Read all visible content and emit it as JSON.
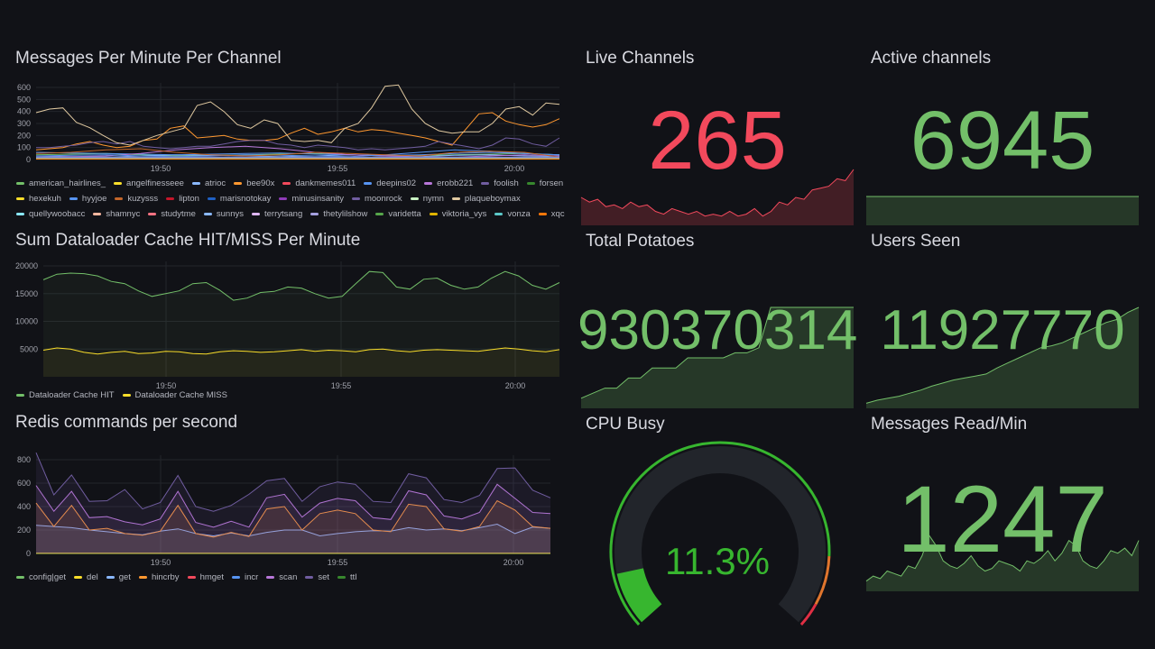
{
  "panels": {
    "messages": {
      "title": "Messages Per Minute Per Channel",
      "yticks": [
        "0",
        "100",
        "200",
        "300",
        "400",
        "500",
        "600"
      ],
      "xticks": [
        "19:50",
        "19:55",
        "20:00"
      ],
      "series": [
        {
          "name": "american_hairlines_",
          "color": "#73bf69",
          "values": [
            40,
            45,
            50,
            40,
            30,
            35,
            40,
            45,
            50,
            40,
            30,
            35,
            40,
            45,
            50,
            40
          ]
        },
        {
          "name": "angelfinesseee",
          "color": "#fade2a",
          "values": [
            5,
            5,
            5,
            5,
            5,
            5,
            5,
            5
          ]
        },
        {
          "name": "atrioc",
          "color": "#8ab8ff",
          "values": [
            30,
            25,
            20,
            30,
            40,
            35,
            30,
            25,
            30,
            40,
            30,
            25,
            35,
            40,
            30,
            25
          ]
        },
        {
          "name": "bee90x",
          "color": "#ff9830",
          "values": [
            80,
            90,
            100,
            130,
            150,
            120,
            100,
            110,
            160,
            170,
            260,
            280,
            180,
            190,
            200,
            170,
            160,
            160,
            170,
            220,
            260,
            210,
            230,
            260,
            230,
            250,
            240,
            220,
            200,
            180,
            150,
            120,
            250,
            380,
            390,
            320,
            290,
            270,
            290,
            340
          ]
        },
        {
          "name": "dankmemes011",
          "color": "#f2495c",
          "values": [
            5,
            5,
            5,
            5,
            5,
            5,
            5,
            5
          ]
        },
        {
          "name": "deepins02",
          "color": "#5794f2",
          "values": [
            60,
            55,
            50,
            45,
            40,
            45,
            50,
            55,
            45,
            40,
            35,
            40,
            50,
            60,
            50,
            40
          ]
        },
        {
          "name": "erobb221",
          "color": "#b877d9",
          "values": [
            20,
            25,
            30,
            50,
            80,
            100,
            110,
            90,
            60,
            40,
            30,
            20,
            20,
            30,
            40,
            30
          ]
        },
        {
          "name": "foolish",
          "color": "#705da0",
          "values": [
            100,
            100,
            110,
            120,
            140,
            150,
            130,
            150,
            110,
            100,
            90,
            100,
            110,
            110,
            130,
            150,
            160,
            160,
            130,
            120,
            100,
            120,
            110,
            100,
            80,
            90,
            80,
            90,
            100,
            110,
            150,
            130,
            110,
            90,
            120,
            180,
            170,
            130,
            110,
            180
          ]
        },
        {
          "name": "forsen",
          "color": "#37872d",
          "values": [
            10,
            10,
            10,
            10,
            10,
            10,
            10,
            10
          ]
        },
        {
          "name": "hexekuh",
          "color": "#fade2a",
          "values": [
            5,
            5,
            5,
            5,
            5,
            5,
            5,
            5
          ]
        },
        {
          "name": "hyyjoe",
          "color": "#5794f2",
          "values": [
            30,
            35,
            40,
            30,
            25,
            30,
            40,
            35,
            30,
            25,
            40,
            60,
            80,
            70,
            50,
            40
          ]
        },
        {
          "name": "kuzysss",
          "color": "#c4662a",
          "values": [
            50,
            60,
            80,
            90,
            60,
            40,
            30,
            40,
            60,
            50,
            40,
            30,
            60,
            70,
            60,
            20
          ]
        },
        {
          "name": "lipton",
          "color": "#c4162a",
          "values": [
            5,
            5,
            5,
            5,
            5,
            5,
            5,
            5
          ]
        },
        {
          "name": "marisnotokay",
          "color": "#1f60c4",
          "values": [
            10,
            10,
            10,
            10,
            10,
            10,
            10,
            10
          ]
        },
        {
          "name": "minusinsanity",
          "color": "#8f3bb8",
          "values": [
            15,
            15,
            15,
            15,
            15,
            15,
            15,
            15
          ]
        },
        {
          "name": "moonrock",
          "color": "#705da0",
          "values": [
            20,
            20,
            20,
            20,
            20,
            20,
            20,
            20
          ]
        },
        {
          "name": "nymn",
          "color": "#c8f2c2",
          "values": [
            10,
            10,
            10,
            10,
            10,
            10,
            10,
            10
          ]
        },
        {
          "name": "plaqueboymax",
          "color": "#e0c9a0",
          "values": [
            390,
            420,
            430,
            310,
            265,
            200,
            140,
            120,
            160,
            200,
            230,
            260,
            450,
            480,
            400,
            290,
            260,
            330,
            300,
            160,
            150,
            160,
            140,
            260,
            300,
            430,
            610,
            620,
            420,
            300,
            240,
            220,
            230,
            230,
            300,
            420,
            440,
            370,
            470,
            460
          ]
        },
        {
          "name": "quellywoobacc",
          "color": "#8ae8ff",
          "values": [
            10,
            10,
            10,
            10,
            10,
            10,
            10,
            10
          ]
        },
        {
          "name": "shamnyc",
          "color": "#ffb8a0",
          "values": [
            10,
            10,
            10,
            10,
            10,
            10,
            10,
            10
          ]
        },
        {
          "name": "studytme",
          "color": "#ff7383",
          "values": [
            5,
            5,
            5,
            5,
            5,
            5,
            5,
            5
          ]
        },
        {
          "name": "sunnys",
          "color": "#8ab8ff",
          "values": [
            15,
            15,
            15,
            15,
            15,
            15,
            15,
            15
          ]
        },
        {
          "name": "terrytsang",
          "color": "#deb6f2",
          "values": [
            10,
            10,
            10,
            10,
            10,
            10,
            10,
            10
          ]
        },
        {
          "name": "thetylilshow",
          "color": "#a5a0e0",
          "values": [
            10,
            10,
            10,
            10,
            10,
            10,
            10,
            10
          ]
        },
        {
          "name": "varidetta",
          "color": "#56a64b",
          "values": [
            5,
            5,
            5,
            5,
            5,
            5,
            5,
            5
          ]
        },
        {
          "name": "viktoria_vys",
          "color": "#e0b400",
          "values": [
            5,
            5,
            5,
            5,
            5,
            5,
            5,
            5
          ]
        },
        {
          "name": "vonza",
          "color": "#5cc8c8",
          "values": [
            10,
            10,
            10,
            10,
            10,
            10,
            10,
            10
          ]
        },
        {
          "name": "xqc",
          "color": "#ff780a",
          "values": [
            5,
            5,
            5,
            5,
            5,
            5,
            5,
            5
          ]
        }
      ]
    },
    "cache": {
      "title": "Sum Dataloader Cache HIT/MISS Per Minute",
      "yticks": [
        "5000",
        "10000",
        "15000",
        "20000"
      ],
      "xticks": [
        "19:50",
        "19:55",
        "20:00"
      ],
      "series": [
        {
          "name": "Dataloader Cache HIT",
          "color": "#73bf69",
          "values": [
            17500,
            18500,
            18700,
            18600,
            18200,
            17200,
            16800,
            15500,
            14500,
            15000,
            15500,
            16800,
            17000,
            15600,
            13800,
            14200,
            15200,
            15400,
            16200,
            16000,
            15000,
            14200,
            14500,
            16800,
            19000,
            18800,
            16200,
            15800,
            17600,
            17800,
            16500,
            15800,
            16200,
            17800,
            19000,
            18200,
            16500,
            15800,
            17000
          ]
        },
        {
          "name": "Dataloader Cache MISS",
          "color": "#fade2a",
          "values": [
            4800,
            5200,
            5000,
            4400,
            4100,
            4400,
            4600,
            4200,
            4300,
            4600,
            4500,
            4200,
            4100,
            4500,
            4700,
            4600,
            4400,
            4500,
            4700,
            4900,
            4600,
            4800,
            4700,
            4500,
            4900,
            5000,
            4700,
            4500,
            4800,
            4900,
            4800,
            4700,
            4600,
            4900,
            5200,
            5000,
            4700,
            4500,
            4900
          ]
        }
      ]
    },
    "redis": {
      "title": "Redis commands per second",
      "yticks": [
        "0",
        "200",
        "400",
        "600",
        "800"
      ],
      "xticks": [
        "19:50",
        "19:55",
        "20:00"
      ],
      "stack_mode": "cumulative",
      "series": [
        {
          "name": "config|get",
          "color": "#73bf69",
          "values": [
            0
          ]
        },
        {
          "name": "del",
          "color": "#fade2a",
          "values": [
            2
          ]
        },
        {
          "name": "get",
          "color": "#8ab8ff",
          "values": [
            240,
            230,
            220,
            200,
            185,
            170,
            160,
            190,
            210,
            170,
            150,
            175,
            150,
            180,
            200,
            200,
            150,
            170,
            185,
            195,
            190,
            220,
            200,
            210,
            195,
            220,
            250,
            170,
            225,
            215
          ]
        },
        {
          "name": "hincrby",
          "color": "#ff9830",
          "values": [
            430,
            230,
            410,
            200,
            215,
            170,
            155,
            190,
            410,
            170,
            140,
            180,
            145,
            380,
            400,
            200,
            340,
            370,
            340,
            200,
            185,
            420,
            400,
            210,
            190,
            230,
            450,
            370,
            230,
            215
          ]
        },
        {
          "name": "hmget",
          "color": "#f2495c",
          "values": []
        },
        {
          "name": "incr",
          "color": "#5794f2",
          "values": []
        },
        {
          "name": "scan",
          "color": "#b877d9",
          "values": [
            580,
            360,
            530,
            305,
            315,
            270,
            245,
            295,
            530,
            265,
            225,
            275,
            225,
            475,
            505,
            310,
            430,
            470,
            450,
            305,
            290,
            535,
            500,
            320,
            295,
            350,
            590,
            470,
            350,
            340
          ]
        },
        {
          "name": "set",
          "color": "#705da0",
          "values": [
            860,
            500,
            670,
            445,
            450,
            545,
            380,
            435,
            665,
            400,
            360,
            410,
            505,
            620,
            640,
            445,
            570,
            610,
            590,
            445,
            435,
            680,
            645,
            460,
            435,
            495,
            725,
            730,
            540,
            475
          ]
        },
        {
          "name": "ttl",
          "color": "#37872d",
          "values": []
        }
      ]
    },
    "live": {
      "title": "Live Channels",
      "value": "265",
      "color": "#f2495c",
      "spark": [
        30,
        25,
        28,
        20,
        22,
        18,
        25,
        20,
        22,
        15,
        12,
        18,
        15,
        12,
        15,
        10,
        12,
        10,
        15,
        10,
        12,
        18,
        10,
        15,
        25,
        22,
        30,
        28,
        38,
        40,
        42,
        50,
        48,
        60
      ]
    },
    "active": {
      "title": "Active channels",
      "value": "6945",
      "color": "#73bf69",
      "spark": [
        100,
        100
      ]
    },
    "potatoes": {
      "title": "Total Potatoes",
      "value": "930370314",
      "color": "#73bf69",
      "spark": [
        10,
        15,
        20,
        20,
        30,
        30,
        40,
        40,
        40,
        50,
        50,
        50,
        50,
        55,
        55,
        60,
        100,
        100,
        100,
        100,
        100,
        100,
        100,
        100
      ]
    },
    "users": {
      "title": "Users Seen",
      "value": "11927770",
      "color": "#73bf69",
      "spark": [
        5,
        8,
        10,
        12,
        15,
        18,
        22,
        25,
        28,
        30,
        32,
        34,
        40,
        45,
        50,
        55,
        60,
        62,
        65,
        70,
        75,
        80,
        85,
        88,
        95,
        100
      ]
    },
    "cpu": {
      "title": "CPU Busy",
      "value": "11.3%",
      "percent": 11.3,
      "color": "#37b62f"
    },
    "msgread": {
      "title": "Messages Read/Min",
      "value": "1247",
      "color": "#73bf69",
      "spark": [
        20,
        30,
        25,
        40,
        35,
        30,
        50,
        45,
        70,
        110,
        90,
        60,
        50,
        45,
        55,
        70,
        50,
        40,
        45,
        60,
        55,
        50,
        40,
        60,
        55,
        65,
        80,
        60,
        75,
        100,
        90,
        60,
        50,
        45,
        60,
        80,
        75,
        85,
        70,
        100
      ]
    }
  }
}
